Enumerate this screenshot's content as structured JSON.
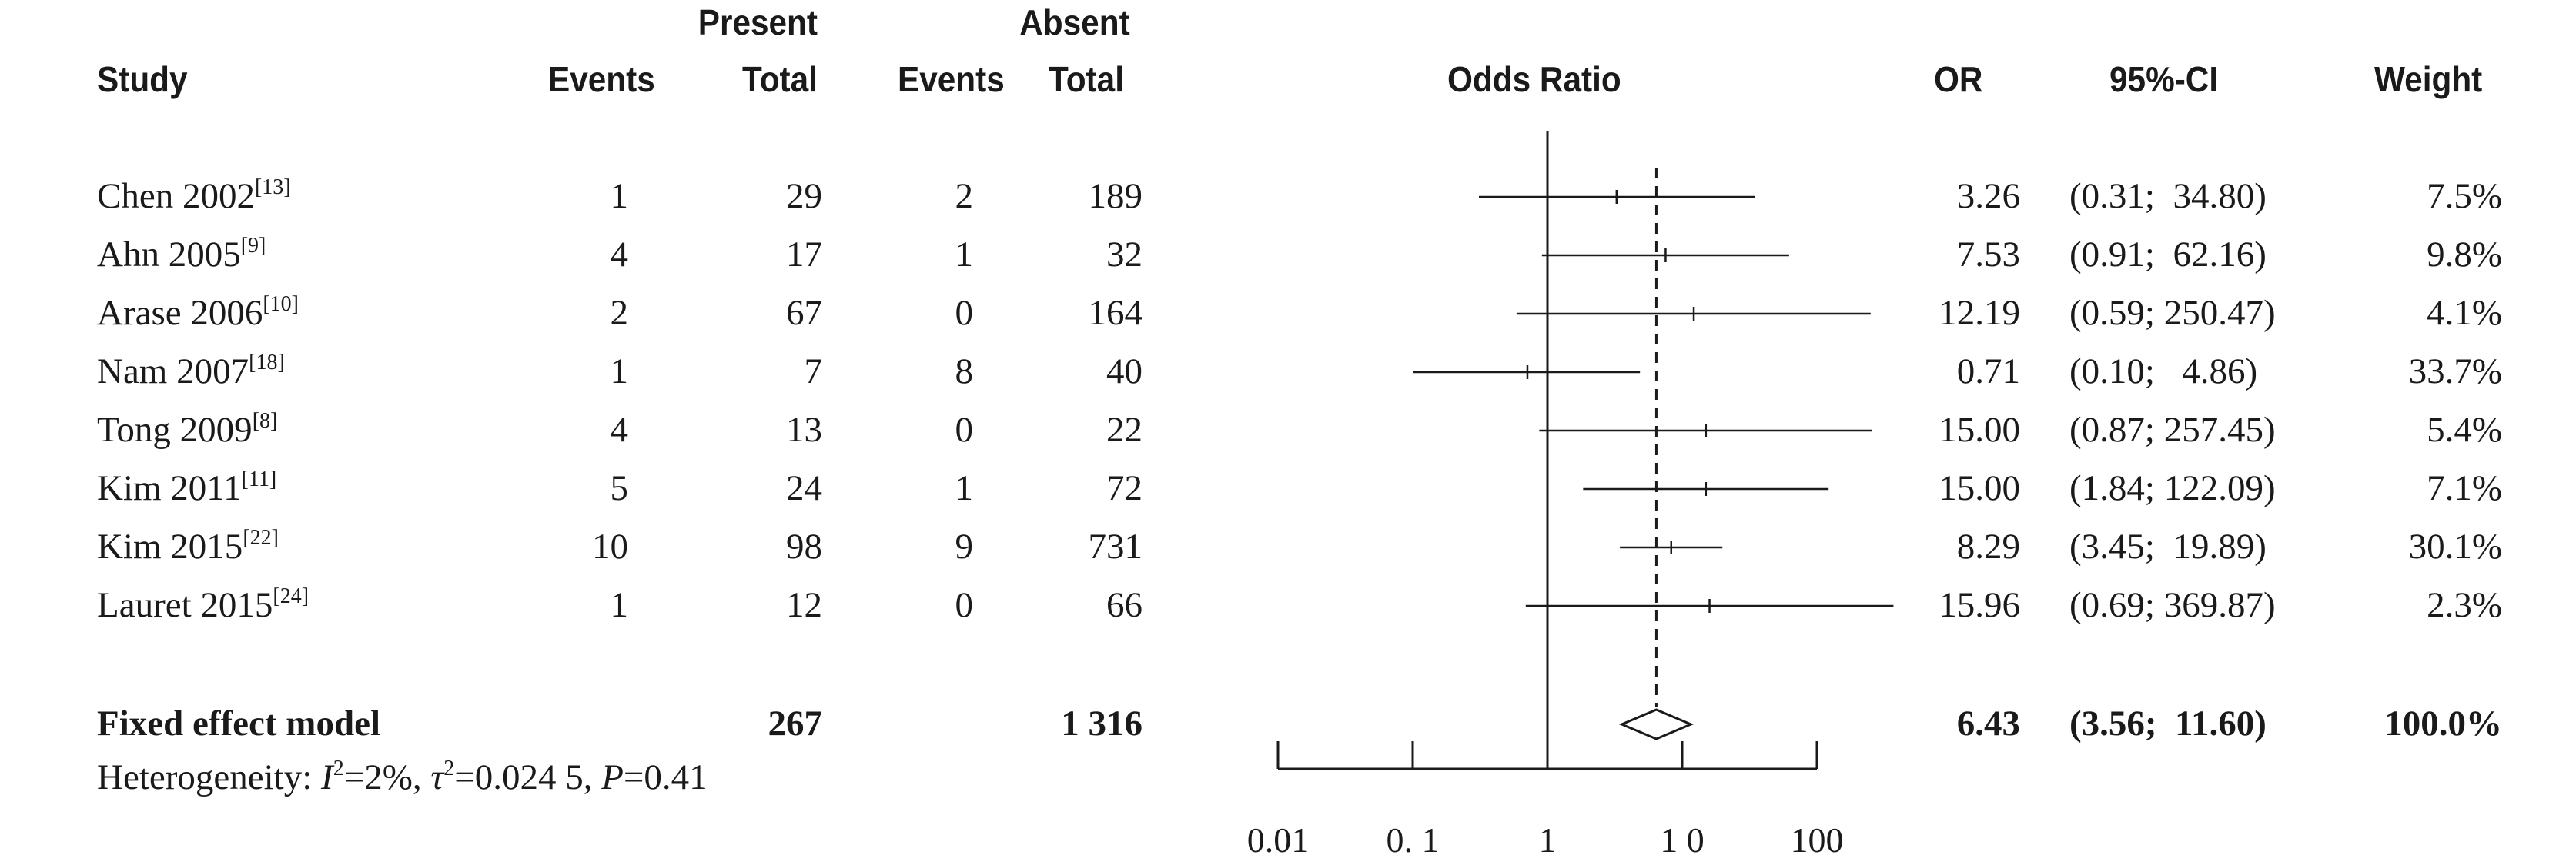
{
  "headers": {
    "study": "Study",
    "present": "Present",
    "absent": "Absent",
    "events": "Events",
    "total": "Total",
    "odds_ratio": "Odds Ratio",
    "or": "OR",
    "ci": "95%-CI",
    "weight": "Weight"
  },
  "chart_data": {
    "type": "forest",
    "x_scale": "log",
    "x_ticks": [
      0.01,
      0.1,
      1,
      10,
      100
    ],
    "x_tick_labels": [
      "0.01",
      "0. 1",
      "1",
      "1 0",
      "100"
    ],
    "reference_line": 1,
    "pooled_line": 6.43,
    "studies": [
      {
        "name": "Chen 2002",
        "ref": "[13]",
        "present_events": "1",
        "present_total": "29",
        "absent_events": "2",
        "absent_total": "189",
        "or": 3.26,
        "lower": 0.31,
        "upper": 34.8,
        "or_text": "3.26",
        "ci_text": "(0.31;  34.80)",
        "weight_text": "7.5%"
      },
      {
        "name": "Ahn 2005",
        "ref": "[9]",
        "present_events": "4",
        "present_total": "17",
        "absent_events": "1",
        "absent_total": "32",
        "or": 7.53,
        "lower": 0.91,
        "upper": 62.16,
        "or_text": "7.53",
        "ci_text": "(0.91;  62.16)",
        "weight_text": "9.8%"
      },
      {
        "name": "Arase 2006",
        "ref": "[10]",
        "present_events": "2",
        "present_total": "67",
        "absent_events": "0",
        "absent_total": "164",
        "or": 12.19,
        "lower": 0.59,
        "upper": 250.47,
        "or_text": "12.19",
        "ci_text": "(0.59; 250.47)",
        "weight_text": "4.1%"
      },
      {
        "name": "Nam 2007",
        "ref": "[18]",
        "present_events": "1",
        "present_total": "7",
        "absent_events": "8",
        "absent_total": "40",
        "or": 0.71,
        "lower": 0.1,
        "upper": 4.86,
        "or_text": "0.71",
        "ci_text": "(0.10;   4.86)",
        "weight_text": "33.7%"
      },
      {
        "name": "Tong 2009",
        "ref": "[8]",
        "present_events": "4",
        "present_total": "13",
        "absent_events": "0",
        "absent_total": "22",
        "or": 15.0,
        "lower": 0.87,
        "upper": 257.45,
        "or_text": "15.00",
        "ci_text": "(0.87; 257.45)",
        "weight_text": "5.4%"
      },
      {
        "name": "Kim 2011",
        "ref": "[11]",
        "present_events": "5",
        "present_total": "24",
        "absent_events": "1",
        "absent_total": "72",
        "or": 15.0,
        "lower": 1.84,
        "upper": 122.09,
        "or_text": "15.00",
        "ci_text": "(1.84; 122.09)",
        "weight_text": "7.1%"
      },
      {
        "name": "Kim 2015",
        "ref": "[22]",
        "present_events": "10",
        "present_total": "98",
        "absent_events": "9",
        "absent_total": "731",
        "or": 8.29,
        "lower": 3.45,
        "upper": 19.89,
        "or_text": "8.29",
        "ci_text": "(3.45;  19.89)",
        "weight_text": "30.1%"
      },
      {
        "name": "Lauret 2015",
        "ref": "[24]",
        "present_events": "1",
        "present_total": "12",
        "absent_events": "0",
        "absent_total": "66",
        "or": 15.96,
        "lower": 0.69,
        "upper": 369.87,
        "or_text": "15.96",
        "ci_text": "(0.69; 369.87)",
        "weight_text": "2.3%"
      }
    ],
    "pooled": {
      "label": "Fixed effect model",
      "present_total": "267",
      "absent_total": "1 316",
      "or": 6.43,
      "lower": 3.56,
      "upper": 11.6,
      "or_text": "6.43",
      "ci_text": "(3.56;  11.60)",
      "weight_text": "100.0%"
    },
    "heterogeneity": {
      "prefix": "Heterogeneity: ",
      "i2_sym": "I",
      "i2_val": "=2%, ",
      "tau_sym": "τ",
      "tau_val": "=0.024 5, ",
      "p_sym": "P",
      "p_val": "=0.41"
    }
  }
}
